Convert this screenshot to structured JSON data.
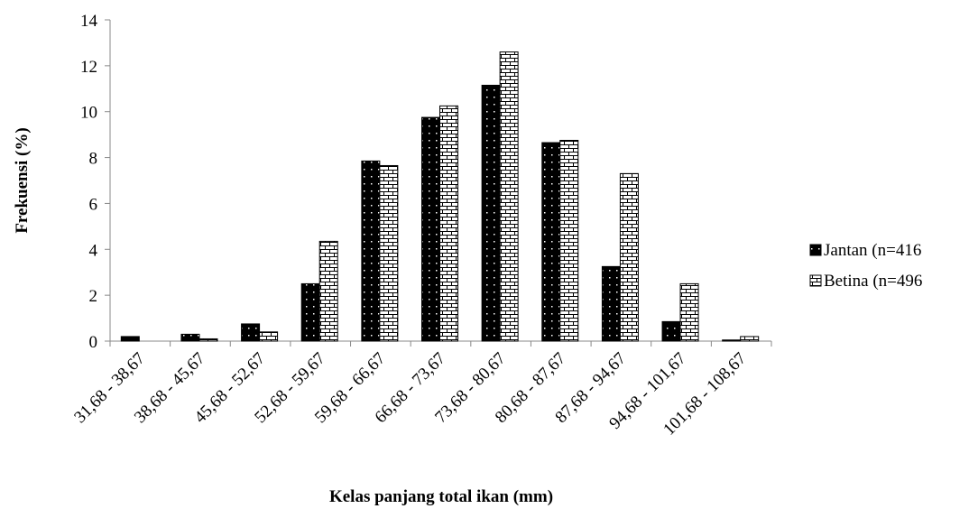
{
  "chart_data": {
    "type": "bar",
    "x_label": "Kelas panjang total ikan (mm)",
    "y_label": "Frekuensi (%)",
    "categories": [
      "31,68 - 38,67",
      "38,68 - 45,67",
      "45,68 - 52,67",
      "52,68 - 59,67",
      "59,68 - 66,67",
      "66,68 - 73,67",
      "73,68 - 80,67",
      "80,68 - 87,67",
      "87,68 - 94,67",
      "94,68 - 101,67",
      "101,68 - 108,67"
    ],
    "series": [
      {
        "name": "Jantan (n=416",
        "color": "#000000",
        "values": [
          0.2,
          0.3,
          0.75,
          2.5,
          7.85,
          9.75,
          11.15,
          8.65,
          3.25,
          0.85,
          0.05
        ]
      },
      {
        "name": "Betina (n=496",
        "color": "#ffffff",
        "values": [
          0,
          0.1,
          0.4,
          4.35,
          7.65,
          10.25,
          12.6,
          8.75,
          7.3,
          2.5,
          0.2
        ]
      }
    ],
    "ylim": [
      0,
      14
    ],
    "yticks": [
      0,
      2,
      4,
      6,
      8,
      10,
      12,
      14
    ],
    "grid": false,
    "legend": "right"
  }
}
